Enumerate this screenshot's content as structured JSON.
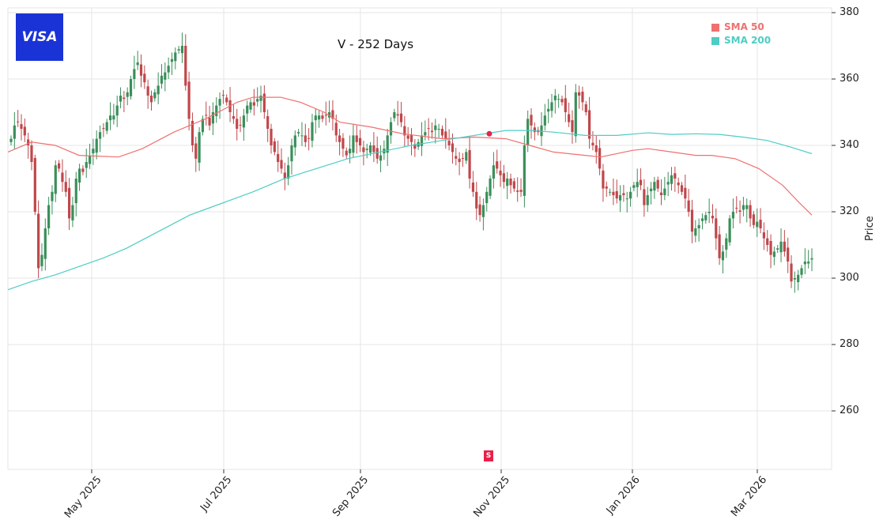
{
  "header": {
    "logo_text": "VISA",
    "title": "V - 252 Days"
  },
  "legend": [
    {
      "label": "SMA 50",
      "color": "#f07070"
    },
    {
      "label": "SMA 200",
      "color": "#4ecdc4"
    }
  ],
  "axes": {
    "ylabel": "Price",
    "yticks": [
      "380",
      "360",
      "340",
      "320",
      "300",
      "280",
      "260"
    ],
    "xticks": [
      "May 2025",
      "Jul 2025",
      "Sep 2025",
      "Nov 2025",
      "Jan 2026",
      "Mar 2026"
    ]
  },
  "signal": {
    "label": "S",
    "color": "#e8214b"
  },
  "colors": {
    "up": "#3a8f5a",
    "down": "#c0474b",
    "grid": "#e6e6e6"
  },
  "chart_data": {
    "type": "candlestick",
    "title": "V - 252 Days",
    "xlabel": "",
    "ylabel": "Price",
    "ylim": [
      243,
      380
    ],
    "x_range": [
      "2025-03",
      "2026-03"
    ],
    "xtick_labels": [
      "May 2025",
      "Jul 2025",
      "Sep 2025",
      "Nov 2025",
      "Jan 2026",
      "Mar 2026"
    ],
    "ytick_values": [
      260,
      280,
      300,
      320,
      340,
      360,
      380
    ],
    "legend": [
      "SMA 50",
      "SMA 200"
    ],
    "grid": true,
    "n_days": 252,
    "close_approx": [
      342,
      346,
      347,
      345,
      343,
      340,
      335,
      320,
      303,
      307,
      315,
      322,
      326,
      334,
      333,
      329,
      326,
      318,
      322,
      330,
      333,
      332,
      335,
      337,
      339,
      342,
      344,
      345,
      347,
      349,
      349,
      352,
      355,
      354,
      356,
      360,
      363,
      365,
      361,
      359,
      355,
      353,
      356,
      358,
      361,
      362,
      364,
      366,
      368,
      369,
      370,
      358,
      348,
      340,
      336,
      344,
      348,
      349,
      346,
      350,
      352,
      354,
      355,
      353,
      350,
      348,
      345,
      346,
      349,
      352,
      353,
      352,
      354,
      355,
      350,
      345,
      340,
      338,
      335,
      333,
      330,
      334,
      340,
      343,
      344,
      343,
      341,
      342,
      347,
      349,
      349,
      348,
      349,
      350,
      348,
      343,
      341,
      339,
      337,
      339,
      343,
      341,
      340,
      338,
      339,
      340,
      338,
      336,
      337,
      339,
      343,
      347,
      350,
      349,
      347,
      343,
      342,
      341,
      339,
      341,
      343,
      344,
      345,
      344,
      346,
      345,
      343,
      342,
      340,
      338,
      336,
      335,
      336,
      338,
      330,
      326,
      321,
      319,
      322,
      326,
      330,
      334,
      333,
      331,
      329,
      330,
      328,
      327,
      326,
      326,
      340,
      348,
      346,
      344,
      344,
      346,
      349,
      351,
      353,
      355,
      354,
      353,
      350,
      347,
      344,
      356,
      355,
      353,
      350,
      342,
      340,
      338,
      333,
      327,
      327,
      326,
      325,
      324,
      325,
      325,
      324,
      326,
      328,
      329,
      328,
      322,
      325,
      327,
      329,
      327,
      325,
      327,
      329,
      331,
      330,
      328,
      326,
      324,
      320,
      314,
      315,
      316,
      318,
      319,
      320,
      318,
      312,
      306,
      308,
      312,
      318,
      320,
      321,
      320,
      322,
      322,
      318,
      316,
      317,
      315,
      312,
      310,
      307,
      308,
      309,
      311,
      308,
      305,
      299,
      300,
      301,
      303,
      305,
      305,
      306
    ],
    "series": [
      {
        "name": "SMA 50",
        "start_value": 338,
        "end_value": 319,
        "peak": 355,
        "peak_period": "Aug 2025"
      },
      {
        "name": "SMA 200",
        "start_value": 296.5,
        "end_value": 337.5,
        "peak": 344.5,
        "peak_period": "Nov 2025"
      }
    ],
    "annotations": [
      {
        "type": "sell_signal",
        "label": "S",
        "date_approx": "late Oct 2025",
        "price": 343.5
      }
    ]
  }
}
